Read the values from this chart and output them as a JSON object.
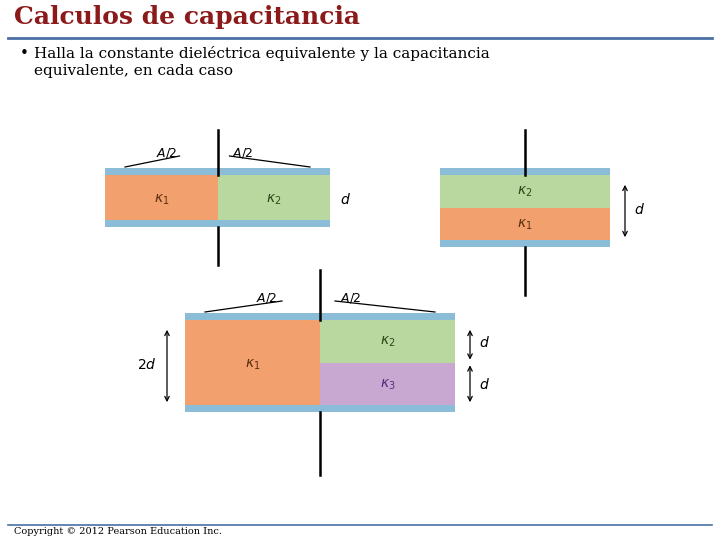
{
  "title": "Calculos de capacitancia",
  "title_color": "#8B1A1A",
  "subtitle_line1": "Halla la constante dieléctrica equivalente y la capacitancia",
  "subtitle_line2": "equivalente, en cada caso",
  "bg_color": "#FFFFFF",
  "header_line_color": "#4A6FA5",
  "colors": {
    "blue_plate": "#8BBDD9",
    "orange": "#F2A06E",
    "green": "#B8D8A0",
    "purple": "#C8A8D0"
  },
  "copyright": "Copyright © 2012 Pearson Education Inc."
}
